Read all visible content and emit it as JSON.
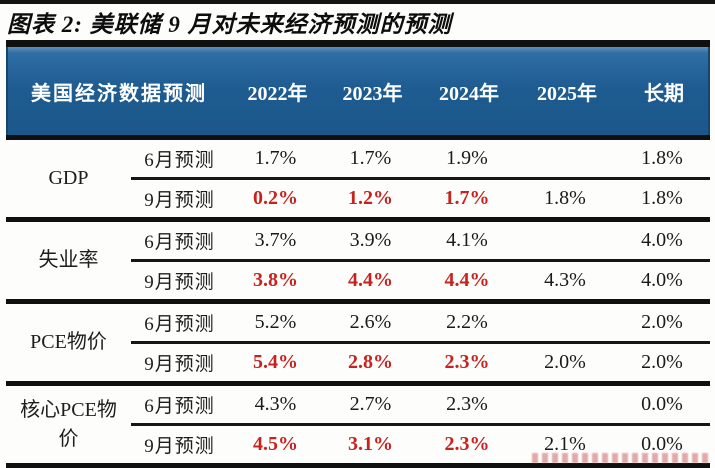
{
  "chart_data": {
    "type": "table",
    "title": "图表 2: 美联储 9 月对未来经济预测的预测",
    "header_col1": "美国经济数据预测",
    "year_columns": [
      "2022年",
      "2023年",
      "2024年",
      "2025年",
      "长期"
    ],
    "groups": [
      {
        "category": "GDP",
        "rows": [
          {
            "label": "6月预测",
            "values": [
              "1.7%",
              "1.7%",
              "1.9%",
              "",
              "1.8%"
            ],
            "red": [
              false,
              false,
              false,
              false,
              false
            ]
          },
          {
            "label": "9月预测",
            "values": [
              "0.2%",
              "1.2%",
              "1.7%",
              "1.8%",
              "1.8%"
            ],
            "red": [
              true,
              true,
              true,
              false,
              false
            ]
          }
        ]
      },
      {
        "category": "失业率",
        "rows": [
          {
            "label": "6月预测",
            "values": [
              "3.7%",
              "3.9%",
              "4.1%",
              "",
              "4.0%"
            ],
            "red": [
              false,
              false,
              false,
              false,
              false
            ]
          },
          {
            "label": "9月预测",
            "values": [
              "3.8%",
              "4.4%",
              "4.4%",
              "4.3%",
              "4.0%"
            ],
            "red": [
              true,
              true,
              true,
              false,
              false
            ]
          }
        ]
      },
      {
        "category": "PCE物价",
        "rows": [
          {
            "label": "6月预测",
            "values": [
              "5.2%",
              "2.6%",
              "2.2%",
              "",
              "2.0%"
            ],
            "red": [
              false,
              false,
              false,
              false,
              false
            ]
          },
          {
            "label": "9月预测",
            "values": [
              "5.4%",
              "2.8%",
              "2.3%",
              "2.0%",
              "2.0%"
            ],
            "red": [
              true,
              true,
              true,
              false,
              false
            ]
          }
        ]
      },
      {
        "category": "核心PCE物价",
        "rows": [
          {
            "label": "6月预测",
            "values": [
              "4.3%",
              "2.7%",
              "2.3%",
              "",
              "0.0%"
            ],
            "red": [
              false,
              false,
              false,
              false,
              false
            ]
          },
          {
            "label": "9月预测",
            "values": [
              "4.5%",
              "3.1%",
              "2.3%",
              "2.1%",
              "0.0%"
            ],
            "red": [
              true,
              true,
              true,
              false,
              false
            ]
          }
        ]
      }
    ],
    "layout": {
      "header_bg": "#1e5c91",
      "highlight_red": "#c62320",
      "text_color": "#1a1a1a",
      "red_highlight_note": "9月预测 rows highlighted red for 2022年–2024年 columns"
    },
    "footer_watermark": {
      "present": true,
      "legible": false,
      "color": "#cf7070"
    }
  }
}
